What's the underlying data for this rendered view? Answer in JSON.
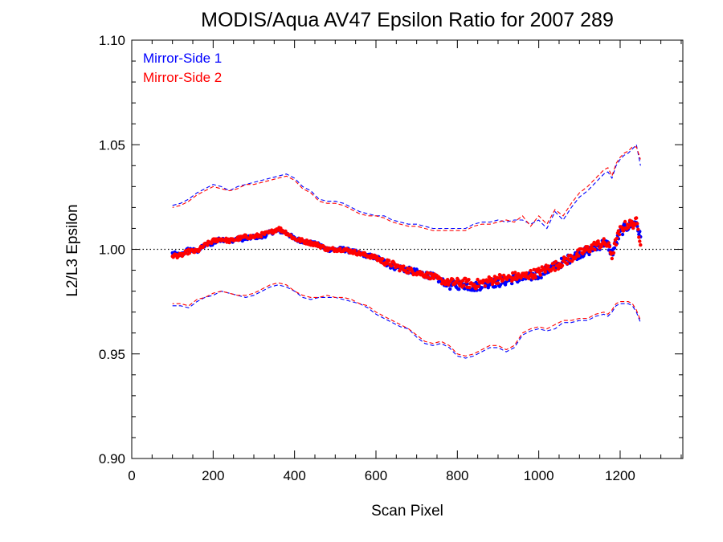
{
  "chart_data": {
    "type": "scatter",
    "title": "MODIS/Aqua AV47 Epsilon Ratio for 2007 289",
    "xlabel": "Scan Pixel",
    "ylabel": "L2/L3 Epsilon",
    "xlim": [
      0,
      1354
    ],
    "ylim": [
      0.9,
      1.1
    ],
    "x_ticks": [
      0,
      200,
      400,
      600,
      800,
      1000,
      1200
    ],
    "x_tick_labels": [
      "0",
      "200",
      "400",
      "600",
      "800",
      "1000",
      "1200"
    ],
    "y_ticks": [
      0.9,
      0.95,
      1.0,
      1.05,
      1.1
    ],
    "y_tick_labels": [
      "0.90",
      "0.95",
      "1.00",
      "1.05",
      "1.10"
    ],
    "reference_line": {
      "y": 1.0,
      "style": "dotted",
      "color": "#000000"
    },
    "legend": {
      "position": "top-left"
    },
    "grid": false,
    "x_samples": [
      100,
      120,
      140,
      160,
      180,
      200,
      220,
      240,
      260,
      280,
      300,
      320,
      340,
      360,
      380,
      400,
      420,
      440,
      460,
      480,
      500,
      520,
      540,
      560,
      580,
      600,
      620,
      640,
      660,
      680,
      700,
      720,
      740,
      760,
      780,
      800,
      820,
      840,
      860,
      880,
      900,
      920,
      940,
      960,
      980,
      1000,
      1020,
      1040,
      1060,
      1080,
      1100,
      1120,
      1140,
      1160,
      1170,
      1180,
      1190,
      1200,
      1210,
      1220,
      1230,
      1240,
      1250
    ],
    "series": [
      {
        "name": "Mirror-Side 1",
        "color": "#0000ff",
        "mean": [
          0.998,
          0.997,
          1.0,
          0.999,
          1.002,
          1.003,
          1.005,
          1.004,
          1.005,
          1.005,
          1.006,
          1.006,
          1.008,
          1.009,
          1.008,
          1.005,
          1.004,
          1.003,
          1.002,
          1.0,
          1.0,
          1.0,
          0.999,
          0.998,
          0.997,
          0.996,
          0.994,
          0.992,
          0.991,
          0.99,
          0.989,
          0.988,
          0.987,
          0.985,
          0.983,
          0.983,
          0.983,
          0.982,
          0.983,
          0.984,
          0.984,
          0.985,
          0.986,
          0.986,
          0.987,
          0.988,
          0.99,
          0.992,
          0.994,
          0.996,
          0.998,
          0.999,
          1.001,
          1.003,
          1.002,
          0.998,
          1.003,
          1.008,
          1.01,
          1.011,
          1.012,
          1.013,
          1.005
        ],
        "upper": [
          1.021,
          1.022,
          1.024,
          1.027,
          1.029,
          1.031,
          1.03,
          1.028,
          1.03,
          1.031,
          1.032,
          1.033,
          1.034,
          1.035,
          1.036,
          1.034,
          1.03,
          1.028,
          1.024,
          1.023,
          1.023,
          1.022,
          1.02,
          1.018,
          1.017,
          1.016,
          1.016,
          1.014,
          1.013,
          1.012,
          1.012,
          1.011,
          1.01,
          1.01,
          1.01,
          1.01,
          1.01,
          1.012,
          1.013,
          1.013,
          1.014,
          1.013,
          1.014,
          1.014,
          1.012,
          1.014,
          1.01,
          1.018,
          1.014,
          1.02,
          1.025,
          1.028,
          1.032,
          1.036,
          1.037,
          1.034,
          1.04,
          1.043,
          1.045,
          1.046,
          1.048,
          1.05,
          1.04
        ],
        "lower": [
          0.973,
          0.973,
          0.972,
          0.975,
          0.977,
          0.978,
          0.98,
          0.979,
          0.978,
          0.977,
          0.978,
          0.98,
          0.982,
          0.983,
          0.982,
          0.98,
          0.977,
          0.976,
          0.977,
          0.977,
          0.977,
          0.976,
          0.975,
          0.974,
          0.972,
          0.969,
          0.967,
          0.965,
          0.963,
          0.962,
          0.958,
          0.955,
          0.954,
          0.955,
          0.953,
          0.949,
          0.948,
          0.949,
          0.951,
          0.953,
          0.953,
          0.951,
          0.953,
          0.959,
          0.961,
          0.962,
          0.961,
          0.962,
          0.965,
          0.965,
          0.966,
          0.966,
          0.968,
          0.969,
          0.968,
          0.97,
          0.973,
          0.974,
          0.974,
          0.974,
          0.973,
          0.97,
          0.965
        ]
      },
      {
        "name": "Mirror-Side 2",
        "color": "#ff0000",
        "mean": [
          0.997,
          0.997,
          0.999,
          0.999,
          1.002,
          1.004,
          1.005,
          1.004,
          1.005,
          1.006,
          1.006,
          1.007,
          1.008,
          1.01,
          1.008,
          1.005,
          1.004,
          1.003,
          1.002,
          1.0,
          1.0,
          1.0,
          0.999,
          0.998,
          0.997,
          0.996,
          0.994,
          0.993,
          0.991,
          0.99,
          0.989,
          0.988,
          0.987,
          0.985,
          0.984,
          0.984,
          0.984,
          0.983,
          0.984,
          0.985,
          0.986,
          0.986,
          0.987,
          0.987,
          0.988,
          0.989,
          0.991,
          0.992,
          0.994,
          0.996,
          0.998,
          1.0,
          1.002,
          1.003,
          1.002,
          0.997,
          1.004,
          1.009,
          1.011,
          1.012,
          1.012,
          1.013,
          1.004
        ],
        "upper": [
          1.02,
          1.021,
          1.023,
          1.026,
          1.028,
          1.03,
          1.029,
          1.028,
          1.029,
          1.031,
          1.031,
          1.032,
          1.033,
          1.034,
          1.035,
          1.033,
          1.029,
          1.027,
          1.023,
          1.022,
          1.022,
          1.021,
          1.019,
          1.017,
          1.016,
          1.016,
          1.015,
          1.013,
          1.012,
          1.011,
          1.011,
          1.01,
          1.009,
          1.009,
          1.009,
          1.009,
          1.009,
          1.011,
          1.012,
          1.012,
          1.013,
          1.014,
          1.013,
          1.016,
          1.011,
          1.016,
          1.012,
          1.019,
          1.016,
          1.022,
          1.027,
          1.03,
          1.034,
          1.038,
          1.039,
          1.035,
          1.041,
          1.044,
          1.046,
          1.047,
          1.049,
          1.049,
          1.043
        ],
        "lower": [
          0.974,
          0.974,
          0.973,
          0.976,
          0.977,
          0.979,
          0.98,
          0.979,
          0.978,
          0.978,
          0.979,
          0.981,
          0.983,
          0.984,
          0.983,
          0.98,
          0.978,
          0.977,
          0.977,
          0.978,
          0.977,
          0.977,
          0.976,
          0.974,
          0.973,
          0.97,
          0.968,
          0.966,
          0.964,
          0.962,
          0.959,
          0.956,
          0.955,
          0.956,
          0.954,
          0.95,
          0.949,
          0.95,
          0.952,
          0.954,
          0.954,
          0.952,
          0.954,
          0.96,
          0.962,
          0.963,
          0.962,
          0.964,
          0.966,
          0.966,
          0.967,
          0.967,
          0.969,
          0.97,
          0.969,
          0.971,
          0.974,
          0.975,
          0.975,
          0.975,
          0.974,
          0.971,
          0.966
        ]
      }
    ]
  }
}
